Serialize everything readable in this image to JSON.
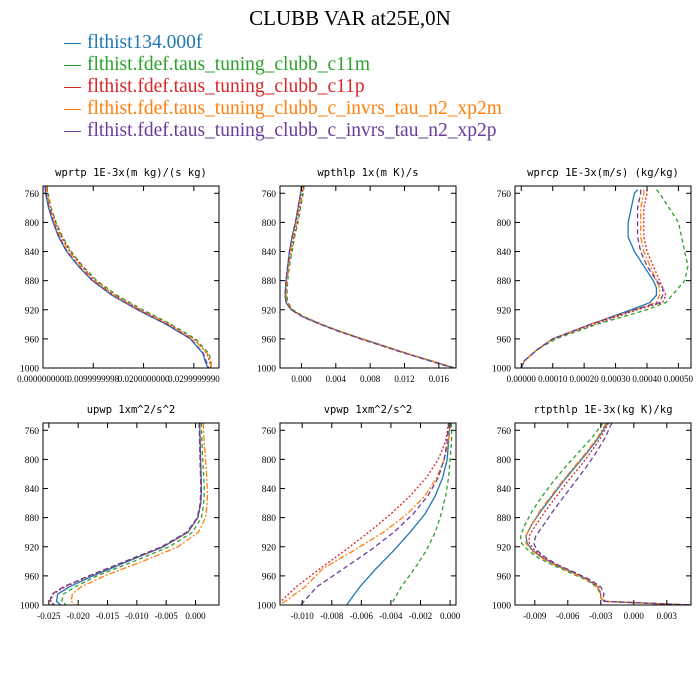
{
  "title": "CLUBB VAR at25E,0N",
  "colors": {
    "blue": "#1f77b4",
    "green": "#2ca02c",
    "red": "#d62728",
    "orange": "#ff7f0e",
    "purple": "#6a3d9a"
  },
  "legend": [
    {
      "label": "flthist134.000f",
      "color": "#1f77b4"
    },
    {
      "label": "flthist.fdef.taus_tuning_clubb_c11m",
      "color": "#2ca02c"
    },
    {
      "label": "flthist.fdef.taus_tuning_clubb_c11p",
      "color": "#d62728"
    },
    {
      "label": "flthist.fdef.taus_tuning_clubb_c_invrs_tau_n2_xp2m",
      "color": "#ff7f0e"
    },
    {
      "label": "flthist.fdef.taus_tuning_clubb_c_invrs_tau_n2_xp2p",
      "color": "#6a3d9a"
    }
  ],
  "chart_data": [
    {
      "type": "line",
      "title": "wprtp  1E-3x(m kg)/(s kg)",
      "xlim": [
        0,
        0.035
      ],
      "ylim": [
        1000,
        750
      ],
      "xticks": [
        0,
        0.01,
        0.02,
        0.03
      ],
      "xticklabels": [
        "0.0000000000",
        "0.0099999998",
        "0.0200000000",
        "0.0299999990"
      ],
      "yticks": [
        760,
        800,
        840,
        880,
        920,
        960,
        1000
      ],
      "yticklabels": [
        "760",
        "800",
        "840",
        "880",
        "920",
        "960",
        "1000"
      ],
      "p": [
        750,
        760,
        780,
        800,
        820,
        840,
        860,
        880,
        900,
        920,
        940,
        960,
        980,
        990,
        1000
      ],
      "series": [
        {
          "color": "#1f77b4",
          "values": [
            0.0004,
            0.0005,
            0.0011,
            0.002,
            0.0031,
            0.0047,
            0.007,
            0.0098,
            0.0137,
            0.0188,
            0.0245,
            0.0293,
            0.0318,
            0.0322,
            0.0328
          ]
        },
        {
          "color": "#2ca02c",
          "values": [
            0.0008,
            0.001,
            0.0016,
            0.0026,
            0.0039,
            0.0056,
            0.0079,
            0.0107,
            0.0147,
            0.0198,
            0.0255,
            0.0303,
            0.033,
            0.0334,
            0.0335
          ]
        },
        {
          "color": "#d62728",
          "values": [
            0.0007,
            0.0009,
            0.0015,
            0.0025,
            0.0037,
            0.0054,
            0.0077,
            0.0104,
            0.0143,
            0.0194,
            0.0251,
            0.03,
            0.0326,
            0.0331,
            0.0334
          ]
        },
        {
          "color": "#ff7f0e",
          "values": [
            0.0006,
            0.0008,
            0.0014,
            0.0023,
            0.0035,
            0.0052,
            0.0075,
            0.0102,
            0.0141,
            0.0192,
            0.0249,
            0.0299,
            0.0327,
            0.0333,
            0.0335
          ]
        },
        {
          "color": "#6a3d9a",
          "values": [
            0.0004,
            0.0006,
            0.0012,
            0.0021,
            0.0032,
            0.0048,
            0.0071,
            0.0099,
            0.0138,
            0.0189,
            0.0246,
            0.0294,
            0.0319,
            0.0324,
            0.033
          ]
        }
      ]
    },
    {
      "type": "line",
      "title": "wpthlp  1x(m K)/s",
      "xlim": [
        -0.0025,
        0.018
      ],
      "ylim": [
        1000,
        750
      ],
      "xticks": [
        0,
        0.004,
        0.008,
        0.012,
        0.016
      ],
      "xticklabels": [
        "0.000",
        "0.004",
        "0.008",
        "0.012",
        "0.016"
      ],
      "yticks": [
        760,
        800,
        840,
        880,
        920,
        960,
        1000
      ],
      "yticklabels": [
        "760",
        "800",
        "840",
        "880",
        "920",
        "960",
        "1000"
      ],
      "p": [
        750,
        760,
        780,
        800,
        820,
        840,
        860,
        880,
        900,
        910,
        920,
        930,
        940,
        950,
        960,
        970,
        980,
        990,
        1000
      ],
      "series": [
        {
          "color": "#1f77b4",
          "values": [
            0.0,
            -0.0001,
            -0.0004,
            -0.0007,
            -0.0011,
            -0.0014,
            -0.0016,
            -0.0018,
            -0.0019,
            -0.0018,
            -0.0012,
            0.0002,
            0.0022,
            0.0045,
            0.007,
            0.0096,
            0.0122,
            0.015,
            0.0178
          ]
        },
        {
          "color": "#2ca02c",
          "values": [
            0.0003,
            0.0002,
            -0.0001,
            -0.0004,
            -0.0008,
            -0.0011,
            -0.0014,
            -0.0016,
            -0.0017,
            -0.0016,
            -0.001,
            0.0004,
            0.0024,
            0.0046,
            0.0071,
            0.0097,
            0.0123,
            0.0151,
            0.0179
          ]
        },
        {
          "color": "#d62728",
          "values": [
            0.0002,
            0.0001,
            -0.0002,
            -0.0005,
            -0.0009,
            -0.0012,
            -0.0015,
            -0.0017,
            -0.0018,
            -0.0017,
            -0.0011,
            0.0003,
            0.0023,
            0.0046,
            0.0071,
            0.0097,
            0.0123,
            0.0151,
            0.0179
          ]
        },
        {
          "color": "#ff7f0e",
          "values": [
            0.0001,
            0.0,
            -0.0003,
            -0.0006,
            -0.001,
            -0.0013,
            -0.0015,
            -0.0017,
            -0.0018,
            -0.0017,
            -0.0011,
            0.0003,
            0.0023,
            0.0045,
            0.007,
            0.0096,
            0.0122,
            0.015,
            0.0178
          ]
        },
        {
          "color": "#6a3d9a",
          "values": [
            0.0,
            -0.0001,
            -0.0004,
            -0.0007,
            -0.0011,
            -0.0014,
            -0.0016,
            -0.0018,
            -0.0019,
            -0.0018,
            -0.0012,
            0.0002,
            0.0022,
            0.0044,
            0.0069,
            0.0095,
            0.0121,
            0.0149,
            0.0177
          ]
        }
      ]
    },
    {
      "type": "line",
      "title": "wprcp  1E-3x(m/s) (kg/kg)",
      "xlim": [
        -2e-05,
        0.00054
      ],
      "ylim": [
        1000,
        750
      ],
      "xticks": [
        0,
        0.0001,
        0.0002,
        0.0003,
        0.0004,
        0.0005
      ],
      "xticklabels": [
        "0.00000",
        "0.00010",
        "0.00020",
        "0.00030",
        "0.00040",
        "0.00050"
      ],
      "yticks": [
        760,
        800,
        840,
        880,
        920,
        960,
        1000
      ],
      "yticklabels": [
        "760",
        "800",
        "840",
        "880",
        "920",
        "960",
        "1000"
      ],
      "p": [
        755,
        760,
        780,
        800,
        820,
        840,
        860,
        880,
        890,
        900,
        910,
        920,
        940,
        960,
        975,
        990,
        1000
      ],
      "series": [
        {
          "color": "#1f77b4",
          "values": [
            0.00037,
            0.00036,
            0.00035,
            0.00034,
            0.00034,
            0.00036,
            0.00039,
            0.00042,
            0.00043,
            0.00043,
            0.00041,
            0.00035,
            0.00022,
            0.0001,
            5e-05,
            1e-05,
            0.0
          ]
        },
        {
          "color": "#2ca02c",
          "values": [
            0.00043,
            0.00044,
            0.00047,
            0.0005,
            0.00051,
            0.00052,
            0.00053,
            0.00052,
            0.0005,
            0.00048,
            0.00046,
            0.0004,
            0.00024,
            0.00011,
            5e-05,
            1e-05,
            0.0
          ]
        },
        {
          "color": "#d62728",
          "values": [
            0.0004,
            0.0004,
            0.00039,
            0.00039,
            0.00039,
            0.0004,
            0.00042,
            0.00044,
            0.00045,
            0.00046,
            0.00045,
            0.00037,
            0.00023,
            0.0001,
            5e-05,
            1e-05,
            0.0
          ]
        },
        {
          "color": "#ff7f0e",
          "values": [
            0.00039,
            0.00039,
            0.00038,
            0.00038,
            0.00038,
            0.00039,
            0.00041,
            0.00043,
            0.00044,
            0.00044,
            0.00043,
            0.00036,
            0.00022,
            0.0001,
            5e-05,
            1e-05,
            0.0
          ]
        },
        {
          "color": "#6a3d9a",
          "values": [
            0.00038,
            0.00038,
            0.00037,
            0.00037,
            0.00037,
            0.00038,
            0.0004,
            0.00043,
            0.00045,
            0.00045,
            0.00044,
            0.00036,
            0.00022,
            0.0001,
            5e-05,
            1e-05,
            0.0
          ]
        }
      ]
    },
    {
      "type": "line",
      "title": "upwp  1xm^2/s^2",
      "xlim": [
        -0.026,
        0.004
      ],
      "ylim": [
        1000,
        750
      ],
      "xticks": [
        -0.025,
        -0.02,
        -0.015,
        -0.01,
        -0.005,
        0
      ],
      "xticklabels": [
        "-0.025",
        "-0.020",
        "-0.015",
        "-0.010",
        "-0.005",
        "0.000"
      ],
      "yticks": [
        760,
        800,
        840,
        880,
        920,
        960,
        1000
      ],
      "yticklabels": [
        "760",
        "800",
        "840",
        "880",
        "920",
        "960",
        "1000"
      ],
      "p": [
        750,
        780,
        810,
        840,
        860,
        880,
        900,
        920,
        940,
        960,
        975,
        985,
        995,
        1000
      ],
      "series": [
        {
          "color": "#1f77b4",
          "values": [
            0.0007,
            0.0008,
            0.0009,
            0.001,
            0.0009,
            0.0004,
            -0.0013,
            -0.0055,
            -0.0115,
            -0.0175,
            -0.0215,
            -0.0235,
            -0.0237,
            -0.023
          ]
        },
        {
          "color": "#2ca02c",
          "values": [
            0.001,
            0.0011,
            0.0013,
            0.0015,
            0.0014,
            0.001,
            -0.0005,
            -0.0045,
            -0.0105,
            -0.0168,
            -0.0205,
            -0.0225,
            -0.0228,
            -0.022
          ]
        },
        {
          "color": "#d62728",
          "values": [
            0.0007,
            0.0008,
            0.0009,
            0.001,
            0.0009,
            0.0004,
            -0.0013,
            -0.0055,
            -0.0118,
            -0.018,
            -0.0222,
            -0.0243,
            -0.0247,
            -0.024
          ]
        },
        {
          "color": "#ff7f0e",
          "values": [
            0.0013,
            0.0015,
            0.0018,
            0.002,
            0.002,
            0.0017,
            0.0005,
            -0.003,
            -0.009,
            -0.0155,
            -0.0195,
            -0.021,
            -0.0212,
            -0.0205
          ]
        },
        {
          "color": "#6a3d9a",
          "values": [
            0.0006,
            0.0007,
            0.0008,
            0.0009,
            0.0008,
            0.0003,
            -0.0015,
            -0.0058,
            -0.012,
            -0.0182,
            -0.0225,
            -0.0245,
            -0.0248,
            -0.0242
          ]
        }
      ]
    },
    {
      "type": "line",
      "title": "vpwp  1xm^2/s^2",
      "xlim": [
        -0.0115,
        0.0004
      ],
      "ylim": [
        1000,
        750
      ],
      "xticks": [
        -0.01,
        -0.008,
        -0.006,
        -0.004,
        -0.002,
        0
      ],
      "xticklabels": [
        "-0.010",
        "-0.008",
        "-0.006",
        "-0.004",
        "-0.002",
        "0.000"
      ],
      "yticks": [
        760,
        800,
        840,
        880,
        920,
        960,
        1000
      ],
      "yticklabels": [
        "760",
        "800",
        "840",
        "880",
        "920",
        "960",
        "1000"
      ],
      "p": [
        750,
        775,
        800,
        825,
        850,
        875,
        900,
        925,
        950,
        975,
        1000
      ],
      "series": [
        {
          "color": "#1f77b4",
          "values": [
            0.0,
            -0.0001,
            -0.0002,
            -0.0005,
            -0.001,
            -0.0017,
            -0.0027,
            -0.0038,
            -0.005,
            -0.0061,
            -0.007
          ]
        },
        {
          "color": "#2ca02c",
          "values": [
            0.0001,
            0.0001,
            0.0,
            -0.0001,
            -0.0003,
            -0.0006,
            -0.001,
            -0.0016,
            -0.0024,
            -0.0033,
            -0.004
          ]
        },
        {
          "color": "#d62728",
          "values": [
            -0.0001,
            -0.0003,
            -0.0008,
            -0.0016,
            -0.0027,
            -0.004,
            -0.0055,
            -0.0071,
            -0.0088,
            -0.0104,
            -0.0117
          ]
        },
        {
          "color": "#ff7f0e",
          "values": [
            0.0,
            -0.0001,
            -0.0004,
            -0.0009,
            -0.0017,
            -0.0029,
            -0.0045,
            -0.0065,
            -0.0086,
            -0.0098,
            -0.0115
          ]
        },
        {
          "color": "#6a3d9a",
          "values": [
            -0.0001,
            -0.0002,
            -0.0004,
            -0.0008,
            -0.0015,
            -0.0025,
            -0.0038,
            -0.0054,
            -0.0072,
            -0.009,
            -0.0101
          ]
        }
      ]
    },
    {
      "type": "line",
      "title": "rtpthlp  1E-3x(kg K)/kg",
      "xlim": [
        -0.0108,
        0.0052
      ],
      "ylim": [
        1000,
        750
      ],
      "xticks": [
        -0.009,
        -0.006,
        -0.003,
        0,
        0.003
      ],
      "xticklabels": [
        "-0.009",
        "-0.006",
        "-0.003",
        "0.000",
        "0.003"
      ],
      "yticks": [
        760,
        800,
        840,
        880,
        920,
        960,
        1000
      ],
      "yticklabels": [
        "760",
        "800",
        "840",
        "880",
        "920",
        "960",
        "1000"
      ],
      "p": [
        750,
        770,
        790,
        810,
        830,
        850,
        870,
        890,
        905,
        915,
        925,
        935,
        945,
        955,
        965,
        975,
        985,
        990,
        995,
        1000
      ],
      "series": [
        {
          "color": "#1f77b4",
          "values": [
            -0.0024,
            -0.0032,
            -0.0042,
            -0.0053,
            -0.0064,
            -0.0074,
            -0.0084,
            -0.0093,
            -0.0098,
            -0.0097,
            -0.0092,
            -0.0083,
            -0.0071,
            -0.0056,
            -0.0042,
            -0.0033,
            -0.003,
            -0.003,
            -0.0027,
            0.0052
          ]
        },
        {
          "color": "#2ca02c",
          "values": [
            -0.0028,
            -0.0038,
            -0.005,
            -0.0062,
            -0.0073,
            -0.0083,
            -0.0092,
            -0.0099,
            -0.0103,
            -0.0102,
            -0.0096,
            -0.0087,
            -0.0074,
            -0.0059,
            -0.0044,
            -0.0034,
            -0.003,
            -0.003,
            -0.0027,
            0.0052
          ]
        },
        {
          "color": "#d62728",
          "values": [
            -0.0023,
            -0.003,
            -0.0039,
            -0.0049,
            -0.006,
            -0.007,
            -0.008,
            -0.0089,
            -0.0095,
            -0.0095,
            -0.009,
            -0.0082,
            -0.007,
            -0.0055,
            -0.0041,
            -0.0032,
            -0.003,
            -0.003,
            -0.0027,
            0.0052
          ]
        },
        {
          "color": "#ff7f0e",
          "values": [
            -0.0025,
            -0.0033,
            -0.0043,
            -0.0054,
            -0.0065,
            -0.0075,
            -0.0085,
            -0.0093,
            -0.0098,
            -0.0098,
            -0.0093,
            -0.0084,
            -0.0072,
            -0.0057,
            -0.0043,
            -0.0033,
            -0.003,
            -0.003,
            -0.0027,
            0.0052
          ]
        },
        {
          "color": "#6a3d9a",
          "values": [
            -0.002,
            -0.0026,
            -0.0034,
            -0.0043,
            -0.0053,
            -0.0063,
            -0.0073,
            -0.0082,
            -0.0089,
            -0.0091,
            -0.0088,
            -0.008,
            -0.0069,
            -0.0054,
            -0.004,
            -0.003,
            -0.0027,
            -0.0028,
            -0.0026,
            0.0052
          ]
        }
      ]
    }
  ]
}
